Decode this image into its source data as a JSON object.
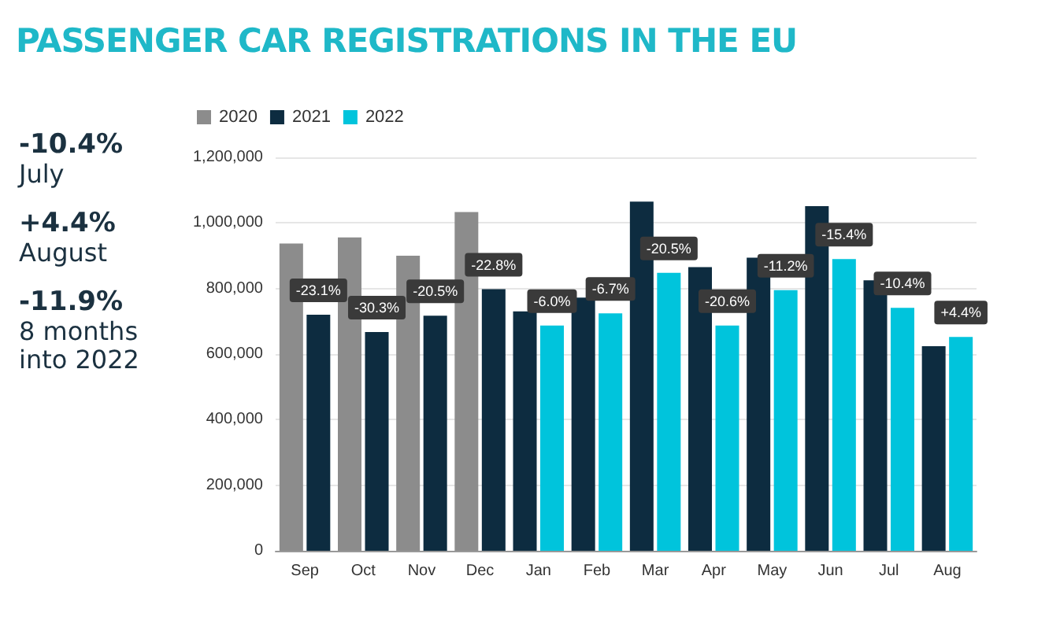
{
  "chart_data": {
    "type": "bar",
    "title": "PASSENGER CAR REGISTRATIONS IN THE EU",
    "annotations": [
      "-10.4%",
      "July",
      "+4.4%",
      "August",
      "-11.9%",
      "8 months into 2022",
      {
        "text": "-23.1%",
        "x": "Sep",
        "y": 720000
      },
      {
        "text": "-30.3%",
        "x": "Oct",
        "y": 667000
      },
      {
        "text": "-20.5%",
        "x": "Nov",
        "y": 717000
      },
      {
        "text": "-22.8%",
        "x": "Dec",
        "y": 798000
      },
      {
        "text": "-6.0%",
        "x": "Jan",
        "y": 687000
      },
      {
        "text": "-6.7%",
        "x": "Feb",
        "y": 724000
      },
      {
        "text": "-20.5%",
        "x": "Mar",
        "y": 848000
      },
      {
        "text": "-20.6%",
        "x": "Apr",
        "y": 687000
      },
      {
        "text": "-11.2%",
        "x": "May",
        "y": 795000
      },
      {
        "text": "-15.4%",
        "x": "Jun",
        "y": 890000
      },
      {
        "text": "-10.4%",
        "x": "Jul",
        "y": 741000
      },
      {
        "text": "+4.4%",
        "x": "Aug",
        "y": 652000
      }
    ],
    "categories": [
      "Sep",
      "Oct",
      "Nov",
      "Dec",
      "Jan",
      "Feb",
      "Mar",
      "Apr",
      "May",
      "Jun",
      "Jul",
      "Aug"
    ],
    "series": [
      {
        "name": "2020",
        "color": "#8c8c8c",
        "values": [
          937000,
          956000,
          900000,
          1033000,
          null,
          null,
          null,
          null,
          null,
          null,
          null,
          null
        ]
      },
      {
        "name": "2021",
        "color": "#0d2c40",
        "values": [
          720000,
          667000,
          717000,
          798000,
          730000,
          772000,
          1065000,
          865000,
          894000,
          1051000,
          825000,
          624000
        ]
      },
      {
        "name": "2022",
        "color": "#00c4dc",
        "values": [
          null,
          null,
          null,
          null,
          687000,
          724000,
          848000,
          687000,
          795000,
          890000,
          741000,
          652000
        ]
      }
    ],
    "ylim": [
      0,
      1200000
    ],
    "yticks": [
      0,
      {
        "value": 200000,
        "label": "200,000"
      },
      {
        "value": 400000,
        "label": "400,000"
      },
      {
        "value": 600000,
        "label": "600,000"
      },
      {
        "value": 800000,
        "label": "800,000"
      },
      {
        "value": 1000000,
        "label": "1,000,000"
      },
      {
        "value": 1200000,
        "label": "1,200,000"
      }
    ],
    "grid": "y",
    "legend": "top left"
  }
}
